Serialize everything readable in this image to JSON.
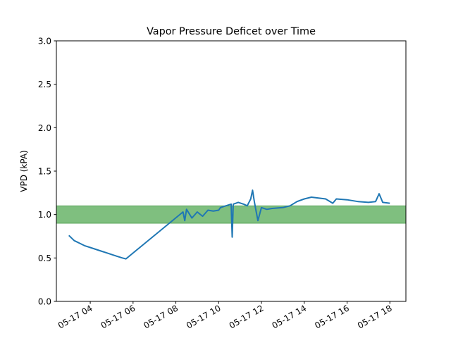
{
  "chart_data": {
    "type": "line",
    "title": "Vapor Pressure Deficet over Time",
    "xlabel": "",
    "ylabel": "VPD (kPA)",
    "ylim": [
      0.0,
      3.0
    ],
    "yticks": [
      0.0,
      0.5,
      1.0,
      1.5,
      2.0,
      2.5,
      3.0
    ],
    "ytick_labels": [
      "0.0",
      "0.5",
      "1.0",
      "1.5",
      "2.0",
      "2.5",
      "3.0"
    ],
    "xlim": [
      "2024-05-17 02:25",
      "2024-05-17 18:45"
    ],
    "xticks": [
      "2024-05-17 04:00",
      "2024-05-17 06:00",
      "2024-05-17 08:00",
      "2024-05-17 10:00",
      "2024-05-17 12:00",
      "2024-05-17 14:00",
      "2024-05-17 16:00",
      "2024-05-17 18:00"
    ],
    "xtick_labels": [
      "05-17 04",
      "05-17 06",
      "05-17 08",
      "05-17 10",
      "05-17 12",
      "05-17 14",
      "05-17 16",
      "05-17 18"
    ],
    "grid": false,
    "band": {
      "y_low": 0.9,
      "y_high": 1.1,
      "color": "#7fbf7f",
      "edge": "#5aa65a"
    },
    "series": [
      {
        "color": "#1f77b4",
        "points": [
          [
            "2024-05-17 03:00",
            0.76
          ],
          [
            "2024-05-17 03:15",
            0.7
          ],
          [
            "2024-05-17 03:30",
            0.67
          ],
          [
            "2024-05-17 03:45",
            0.64
          ],
          [
            "2024-05-17 04:00",
            0.62
          ],
          [
            "2024-05-17 04:15",
            0.6
          ],
          [
            "2024-05-17 04:30",
            0.58
          ],
          [
            "2024-05-17 04:45",
            0.56
          ],
          [
            "2024-05-17 05:00",
            0.54
          ],
          [
            "2024-05-17 05:15",
            0.52
          ],
          [
            "2024-05-17 05:30",
            0.5
          ],
          [
            "2024-05-17 05:40",
            0.49
          ],
          [
            "2024-05-17 08:20",
            1.03
          ],
          [
            "2024-05-17 08:25",
            0.93
          ],
          [
            "2024-05-17 08:30",
            1.06
          ],
          [
            "2024-05-17 08:45",
            0.96
          ],
          [
            "2024-05-17 09:00",
            1.03
          ],
          [
            "2024-05-17 09:15",
            0.98
          ],
          [
            "2024-05-17 09:30",
            1.05
          ],
          [
            "2024-05-17 09:45",
            1.04
          ],
          [
            "2024-05-17 10:00",
            1.05
          ],
          [
            "2024-05-17 10:05",
            1.08
          ],
          [
            "2024-05-17 10:20",
            1.1
          ],
          [
            "2024-05-17 10:35",
            1.12
          ],
          [
            "2024-05-17 10:38",
            0.74
          ],
          [
            "2024-05-17 10:41",
            1.12
          ],
          [
            "2024-05-17 10:55",
            1.14
          ],
          [
            "2024-05-17 11:10",
            1.12
          ],
          [
            "2024-05-17 11:20",
            1.1
          ],
          [
            "2024-05-17 11:30",
            1.18
          ],
          [
            "2024-05-17 11:35",
            1.28
          ],
          [
            "2024-05-17 11:40",
            1.15
          ],
          [
            "2024-05-17 11:45",
            1.04
          ],
          [
            "2024-05-17 11:50",
            0.93
          ],
          [
            "2024-05-17 12:00",
            1.08
          ],
          [
            "2024-05-17 12:15",
            1.06
          ],
          [
            "2024-05-17 12:30",
            1.07
          ],
          [
            "2024-05-17 13:00",
            1.08
          ],
          [
            "2024-05-17 13:20",
            1.1
          ],
          [
            "2024-05-17 13:40",
            1.15
          ],
          [
            "2024-05-17 14:00",
            1.18
          ],
          [
            "2024-05-17 14:20",
            1.2
          ],
          [
            "2024-05-17 14:40",
            1.19
          ],
          [
            "2024-05-17 15:00",
            1.18
          ],
          [
            "2024-05-17 15:20",
            1.13
          ],
          [
            "2024-05-17 15:30",
            1.18
          ],
          [
            "2024-05-17 16:00",
            1.17
          ],
          [
            "2024-05-17 16:30",
            1.15
          ],
          [
            "2024-05-17 17:00",
            1.14
          ],
          [
            "2024-05-17 17:20",
            1.15
          ],
          [
            "2024-05-17 17:30",
            1.24
          ],
          [
            "2024-05-17 17:40",
            1.14
          ],
          [
            "2024-05-17 18:00",
            1.13
          ]
        ]
      }
    ]
  }
}
